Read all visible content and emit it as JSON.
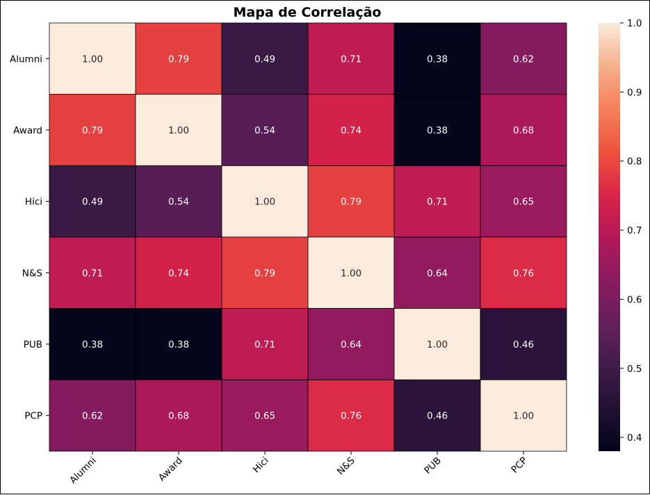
{
  "chart_data": {
    "type": "heatmap",
    "title": "Mapa de Correlação",
    "xlabel": "",
    "ylabel": "",
    "x_categories": [
      "Alumni",
      "Award",
      "Hici",
      "N&S",
      "PUB",
      "PCP"
    ],
    "y_categories": [
      "Alumni",
      "Award",
      "Hici",
      "N&S",
      "PUB",
      "PCP"
    ],
    "values": [
      [
        1.0,
        0.79,
        0.49,
        0.71,
        0.38,
        0.62
      ],
      [
        0.79,
        1.0,
        0.54,
        0.74,
        0.38,
        0.68
      ],
      [
        0.49,
        0.54,
        1.0,
        0.79,
        0.71,
        0.65
      ],
      [
        0.71,
        0.74,
        0.79,
        1.0,
        0.64,
        0.76
      ],
      [
        0.38,
        0.38,
        0.71,
        0.64,
        1.0,
        0.46
      ],
      [
        0.62,
        0.68,
        0.65,
        0.76,
        0.46,
        1.0
      ]
    ],
    "value_format": "0.00",
    "colormap": "rocket",
    "colorbar": {
      "min": 0.38,
      "max": 1.0,
      "ticks": [
        "0.4",
        "0.5",
        "0.6",
        "0.7",
        "0.8",
        "0.9",
        "1.0"
      ],
      "tick_values": [
        0.4,
        0.5,
        0.6,
        0.7,
        0.8,
        0.9,
        1.0
      ]
    },
    "grid": true,
    "x_tick_rotation": 45
  }
}
